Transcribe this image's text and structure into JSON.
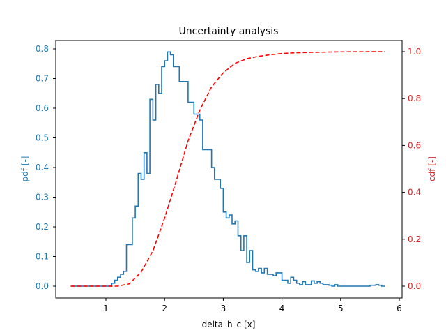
{
  "chart_data": {
    "type": "line",
    "title": "Uncertainty analysis",
    "xlabel": "delta_h_c [x]",
    "ylabel_left": "pdf [-]",
    "ylabel_right": "cdf [-]",
    "xlim": [
      0.25,
      6.05
    ],
    "ylim_left": [
      -0.04,
      0.84
    ],
    "ylim_right": [
      -0.05,
      1.05
    ],
    "xticks": [
      "1",
      "2",
      "3",
      "4",
      "5",
      "6"
    ],
    "yticks_left": [
      "0.0",
      "0.1",
      "0.2",
      "0.3",
      "0.4",
      "0.5",
      "0.6",
      "0.7",
      "0.8"
    ],
    "yticks_right": [
      "0.0",
      "0.2",
      "0.4",
      "0.6",
      "0.8",
      "1.0"
    ],
    "grid": false,
    "legend": null,
    "colors": {
      "pdf": "#1f77b4",
      "cdf": "#ff0000",
      "left_axis": "#1f77b4",
      "right_axis": "#d62728"
    },
    "series": [
      {
        "name": "pdf",
        "style": "step",
        "axis": "left",
        "x_edges": [
          0.4,
          1.1,
          1.15,
          1.2,
          1.25,
          1.3,
          1.35,
          1.45,
          1.5,
          1.55,
          1.6,
          1.65,
          1.7,
          1.75,
          1.8,
          1.85,
          1.9,
          1.95,
          2.0,
          2.05,
          2.1,
          2.15,
          2.2,
          2.25,
          2.3,
          2.4,
          2.5,
          2.6,
          2.65,
          2.7,
          2.8,
          2.85,
          2.9,
          2.95,
          3.0,
          3.05,
          3.1,
          3.15,
          3.2,
          3.25,
          3.3,
          3.35,
          3.4,
          3.45,
          3.5,
          3.55,
          3.6,
          3.65,
          3.7,
          3.75,
          3.8,
          3.85,
          3.9,
          4.0,
          4.1,
          4.15,
          4.2,
          4.25,
          4.3,
          4.35,
          4.4,
          4.45,
          4.5,
          4.55,
          4.6,
          4.65,
          4.7,
          4.75,
          4.8,
          4.85,
          4.9,
          4.95,
          5.0,
          5.1,
          5.2,
          5.3,
          5.4,
          5.5,
          5.6,
          5.65,
          5.7,
          5.75
        ],
        "values": [
          0.0,
          0.01,
          0.02,
          0.03,
          0.04,
          0.05,
          0.14,
          0.23,
          0.27,
          0.38,
          0.36,
          0.45,
          0.38,
          0.63,
          0.56,
          0.68,
          0.65,
          0.74,
          0.76,
          0.79,
          0.78,
          0.74,
          0.74,
          0.69,
          0.69,
          0.62,
          0.58,
          0.56,
          0.46,
          0.46,
          0.4,
          0.36,
          0.36,
          0.33,
          0.25,
          0.23,
          0.24,
          0.21,
          0.22,
          0.17,
          0.12,
          0.17,
          0.08,
          0.12,
          0.055,
          0.05,
          0.06,
          0.045,
          0.06,
          0.04,
          0.04,
          0.035,
          0.045,
          0.02,
          0.01,
          0.03,
          0.02,
          0.01,
          0.005,
          0.015,
          0.005,
          0.005,
          0.018,
          0.01,
          0.015,
          0.01,
          0.005,
          0.005,
          0.003,
          0.0,
          0.005,
          0.0,
          0.0,
          0.0,
          0.0,
          0.0,
          0.0,
          0.003,
          0.005,
          0.003,
          0.0
        ]
      },
      {
        "name": "cdf",
        "style": "dashed",
        "axis": "right",
        "x": [
          0.4,
          1.0,
          1.2,
          1.4,
          1.6,
          1.8,
          2.0,
          2.2,
          2.4,
          2.6,
          2.8,
          3.0,
          3.2,
          3.4,
          3.6,
          3.8,
          4.0,
          4.2,
          4.5,
          5.0,
          5.75
        ],
        "values": [
          0.0,
          0.0,
          0.0,
          0.01,
          0.06,
          0.15,
          0.29,
          0.45,
          0.62,
          0.75,
          0.85,
          0.91,
          0.95,
          0.97,
          0.98,
          0.987,
          0.992,
          0.995,
          0.997,
          0.999,
          1.0
        ]
      }
    ]
  }
}
